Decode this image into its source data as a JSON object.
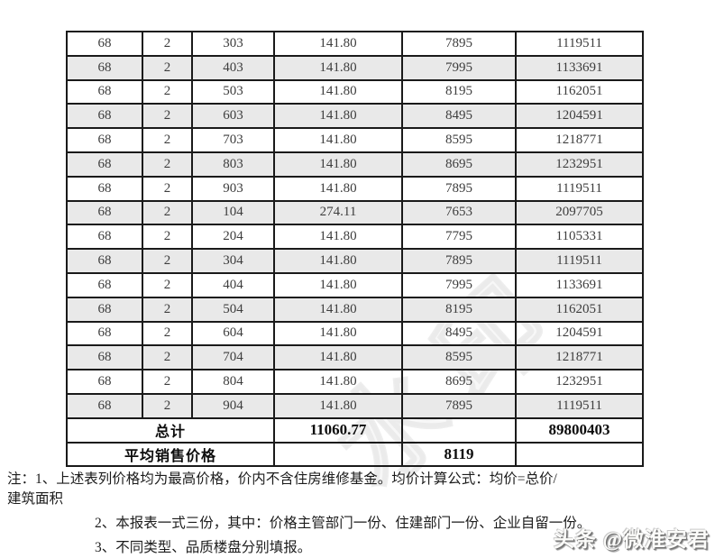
{
  "table": {
    "column_keys": [
      "building_no",
      "unit_no",
      "room_no",
      "area",
      "unit_price",
      "total_price"
    ],
    "rows": [
      [
        "68",
        "2",
        "303",
        "141.80",
        "7895",
        "1119511"
      ],
      [
        "68",
        "2",
        "403",
        "141.80",
        "7995",
        "1133691"
      ],
      [
        "68",
        "2",
        "503",
        "141.80",
        "8195",
        "1162051"
      ],
      [
        "68",
        "2",
        "603",
        "141.80",
        "8495",
        "1204591"
      ],
      [
        "68",
        "2",
        "703",
        "141.80",
        "8595",
        "1218771"
      ],
      [
        "68",
        "2",
        "803",
        "141.80",
        "8695",
        "1232951"
      ],
      [
        "68",
        "2",
        "903",
        "141.80",
        "7895",
        "1119511"
      ],
      [
        "68",
        "2",
        "104",
        "274.11",
        "7653",
        "2097705"
      ],
      [
        "68",
        "2",
        "204",
        "141.80",
        "7795",
        "1105331"
      ],
      [
        "68",
        "2",
        "304",
        "141.80",
        "7895",
        "1119511"
      ],
      [
        "68",
        "2",
        "404",
        "141.80",
        "7995",
        "1133691"
      ],
      [
        "68",
        "2",
        "504",
        "141.80",
        "8195",
        "1162051"
      ],
      [
        "68",
        "2",
        "604",
        "141.80",
        "8495",
        "1204591"
      ],
      [
        "68",
        "2",
        "704",
        "141.80",
        "8595",
        "1218771"
      ],
      [
        "68",
        "2",
        "804",
        "141.80",
        "8695",
        "1232951"
      ],
      [
        "68",
        "2",
        "904",
        "141.80",
        "7895",
        "1119511"
      ]
    ],
    "total_row": {
      "label": "总计",
      "area_total": "11060.77",
      "price_total": "89800403"
    },
    "average_row": {
      "label": "平均销售价格",
      "unit_price_avg": "8119"
    },
    "colors": {
      "row_alt_background": "#e9e9e9",
      "border": "#1a1a1a"
    }
  },
  "notes": {
    "line1": "注：1、上述表列价格均为最高价格，价内不含住房维修基金。均价计算公式：均价=总价/",
    "line2": "建筑面积",
    "item2": "2、本报表一式三份，其中：价格主管部门一份、住建部门一份、企业自留一份。",
    "item3": "3、不同类型、品质楼盘分别填报。"
  },
  "watermarks": {
    "diagonal_text": "水印",
    "corner_text": "头条 @微淮安君"
  }
}
